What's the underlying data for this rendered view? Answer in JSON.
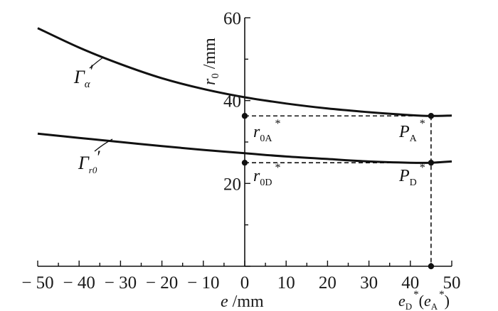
{
  "chart_data": {
    "type": "line",
    "title": "",
    "xlabel": {
      "italic": "e",
      "rest": " /mm"
    },
    "ylabel": {
      "italic": "r",
      "sub": "0",
      "rest": " /mm"
    },
    "xlim": [
      -50,
      50
    ],
    "ylim": [
      0,
      60
    ],
    "xticks": [
      -50,
      -40,
      -30,
      -20,
      -10,
      0,
      10,
      20,
      30,
      40,
      50
    ],
    "xtick_labels": [
      "− 50",
      "− 40",
      "− 30",
      "− 20",
      "− 10",
      "0",
      "10",
      "20",
      "30",
      "40",
      "50"
    ],
    "yticks": [
      20,
      40,
      60
    ],
    "ytick_labels": [
      "20",
      "40",
      "60"
    ],
    "grid": false,
    "series": [
      {
        "name": "Γ_α′",
        "label": {
          "main": "Γ",
          "sub": "α",
          "prime": "′"
        },
        "x": [
          -50,
          -40,
          -30,
          -20,
          -10,
          0,
          10,
          20,
          30,
          40,
          45,
          50
        ],
        "y": [
          57.5,
          52.8,
          48.8,
          45.4,
          42.8,
          40.8,
          39.3,
          38.1,
          37.2,
          36.5,
          36.3,
          36.4
        ]
      },
      {
        "name": "Γ_r0′",
        "label": {
          "main": "Γ",
          "sub": "r0",
          "prime": "′"
        },
        "x": [
          -50,
          -40,
          -30,
          -20,
          -10,
          0,
          10,
          20,
          30,
          40,
          45,
          50
        ],
        "y": [
          32.0,
          31.0,
          30.0,
          29.0,
          28.1,
          27.3,
          26.5,
          25.9,
          25.3,
          25.0,
          25.0,
          25.3
        ]
      }
    ],
    "points": [
      {
        "name": "r0A*",
        "x": 0,
        "y": 36.3
      },
      {
        "name": "PA*",
        "x": 45,
        "y": 36.3
      },
      {
        "name": "r0D*",
        "x": 0,
        "y": 25.0
      },
      {
        "name": "PD*",
        "x": 45,
        "y": 25.0
      },
      {
        "name": "eD*(eA*)",
        "x": 45,
        "y": 0
      }
    ],
    "annotations": {
      "r0A": {
        "main": "r",
        "sub": "0A",
        "sup": "*"
      },
      "r0D": {
        "main": "r",
        "sub": "0D",
        "sup": "*"
      },
      "PA": {
        "main": "P",
        "sub": "A",
        "sup": "*"
      },
      "PD": {
        "main": "P",
        "sub": "D",
        "sup": "*"
      },
      "eD": {
        "main": "e",
        "sub": "D",
        "sup": "*",
        "paren_open": "(",
        "main2": "e",
        "sub2": "A",
        "sup2": "*",
        "paren_close": ")"
      }
    }
  }
}
